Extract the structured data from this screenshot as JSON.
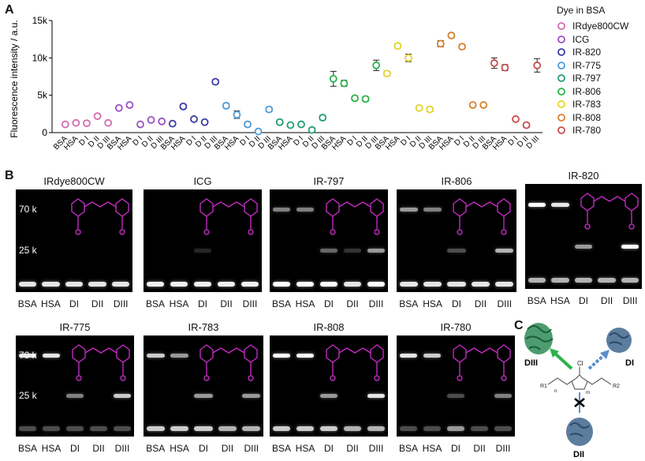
{
  "panel_labels": {
    "a": "A",
    "b": "B",
    "c": "C"
  },
  "chart_data": {
    "type": "scatter",
    "ylabel": "Fluorescence intensity / a.u.",
    "yticks": [
      "0",
      "5k",
      "10k",
      "15k"
    ],
    "ylim": [
      0,
      15000
    ],
    "categories": [
      "BSA",
      "HSA",
      "D I",
      "D II",
      "D III"
    ],
    "legend_title": "Dye in BSA",
    "series": [
      {
        "name": "IRdye800CW",
        "color": "#d46bb0",
        "values": [
          1100,
          1300,
          1250,
          2200,
          1300
        ],
        "errors": [
          150,
          150,
          150,
          250,
          150
        ]
      },
      {
        "name": "ICG",
        "color": "#9b4fc4",
        "values": [
          3300,
          3700,
          1100,
          1700,
          1500
        ],
        "errors": [
          200,
          200,
          150,
          200,
          200
        ]
      },
      {
        "name": "IR-820",
        "color": "#3a3aa8",
        "values": [
          1200,
          3500,
          1800,
          1400,
          6800
        ],
        "errors": [
          200,
          300,
          200,
          200,
          300
        ]
      },
      {
        "name": "IR-775",
        "color": "#4f9ad6",
        "values": [
          3600,
          2400,
          1100,
          150,
          3100
        ],
        "errors": [
          300,
          500,
          300,
          100,
          300
        ]
      },
      {
        "name": "IR-797",
        "color": "#1f9e74",
        "values": [
          1400,
          1000,
          1100,
          350,
          2000
        ],
        "errors": [
          300,
          200,
          200,
          300,
          300
        ]
      },
      {
        "name": "IR-806",
        "color": "#2bb34a",
        "values": [
          7200,
          6600,
          4600,
          4500,
          9000
        ],
        "errors": [
          1000,
          400,
          300,
          300,
          700
        ]
      },
      {
        "name": "IR-783",
        "color": "#e3d526",
        "values": [
          7900,
          11600,
          10000,
          3300,
          3100
        ],
        "errors": [
          300,
          300,
          500,
          200,
          300
        ]
      },
      {
        "name": "IR-808",
        "color": "#d9802a",
        "values": [
          11900,
          13000,
          11500,
          3700,
          3700
        ],
        "errors": [
          400,
          300,
          300,
          200,
          200
        ]
      },
      {
        "name": "IR-780",
        "color": "#c94c4c",
        "values": [
          9300,
          8700,
          1800,
          1000,
          9000
        ],
        "errors": [
          700,
          400,
          200,
          300,
          900
        ]
      }
    ]
  },
  "gels": [
    {
      "title": "IRdye800CW",
      "mw": [
        "70 k",
        "25 k"
      ],
      "lanes": [
        "BSA",
        "HSA",
        "DI",
        "DII",
        "DIII"
      ]
    },
    {
      "title": "ICG",
      "mw": [],
      "lanes": [
        "BSA",
        "HSA",
        "DI",
        "DII",
        "DIII"
      ]
    },
    {
      "title": "IR-797",
      "mw": [],
      "lanes": [
        "BSA",
        "HSA",
        "DI",
        "DII",
        "DIII"
      ]
    },
    {
      "title": "IR-806",
      "mw": [],
      "lanes": [
        "BSA",
        "HSA",
        "DI",
        "DII",
        "DIII"
      ]
    },
    {
      "title": "IR-820",
      "mw": [],
      "lanes": [
        "BSA",
        "HSA",
        "DI",
        "DII",
        "DIII"
      ]
    },
    {
      "title": "IR-775",
      "mw": [
        "70 k",
        "25 k"
      ],
      "lanes": [
        "BSA",
        "HSA",
        "DI",
        "DII",
        "DIII"
      ]
    },
    {
      "title": "IR-783",
      "mw": [],
      "lanes": [
        "BSA",
        "HSA",
        "DI",
        "DII",
        "DIII"
      ]
    },
    {
      "title": "IR-808",
      "mw": [],
      "lanes": [
        "BSA",
        "HSA",
        "DI",
        "DII",
        "DIII"
      ]
    },
    {
      "title": "IR-780",
      "mw": [],
      "lanes": [
        "BSA",
        "HSA",
        "DI",
        "DII",
        "DIII"
      ]
    }
  ],
  "diagram": {
    "domain_labels": [
      "DIII",
      "DI",
      "DII"
    ],
    "substituent_labels": [
      "Cl",
      "R1",
      "R2",
      "n",
      "m"
    ]
  }
}
